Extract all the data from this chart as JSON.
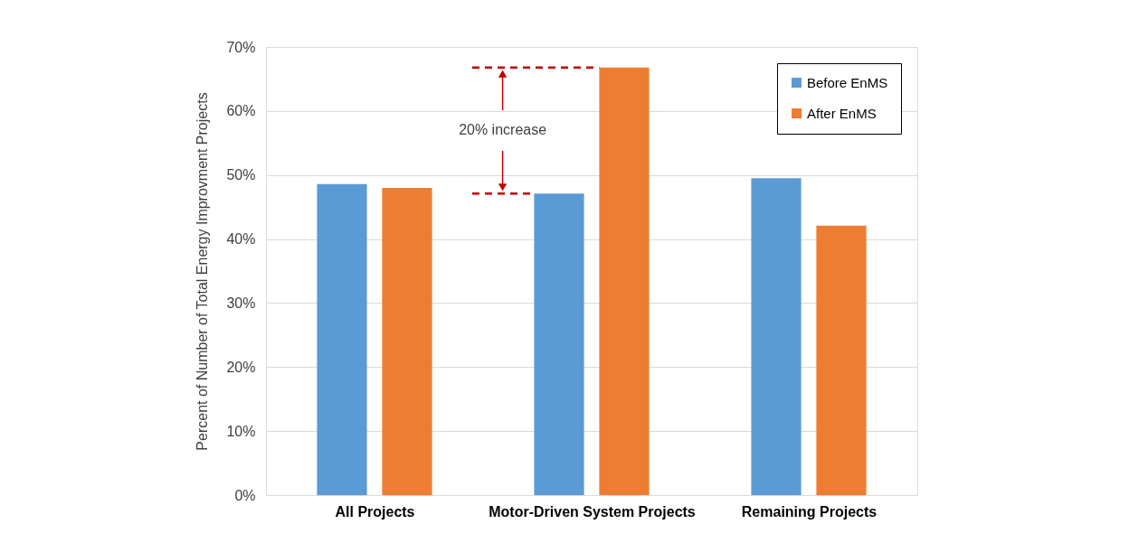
{
  "chart_data": {
    "type": "bar",
    "categories": [
      "All Projects",
      "Motor-Driven System Projects",
      "Remaining Projects"
    ],
    "series": [
      {
        "name": "Before EnMS",
        "color": "#5b9bd5",
        "values": [
          48.6,
          47.1,
          49.5
        ]
      },
      {
        "name": "After EnMS",
        "color": "#ed7d31",
        "values": [
          48.0,
          66.8,
          42.1
        ]
      }
    ],
    "ylabel": "Percent of Number of Total Energy Improvment Projects",
    "ylim": [
      0,
      70
    ],
    "yticks": [
      {
        "value": 0,
        "label": "0%"
      },
      {
        "value": 10,
        "label": "10%"
      },
      {
        "value": 20,
        "label": "20%"
      },
      {
        "value": 30,
        "label": "30%"
      },
      {
        "value": 40,
        "label": "40%"
      },
      {
        "value": 50,
        "label": "50%"
      },
      {
        "value": 60,
        "label": "60%"
      },
      {
        "value": 70,
        "label": "70%"
      }
    ],
    "grid": "y",
    "legend": "top right",
    "ref_lines": [
      {
        "axis": "y",
        "value": 66.8,
        "color": "#c00000",
        "line_style": "dashed"
      },
      {
        "axis": "y",
        "value": 47.1,
        "color": "#c00000",
        "line_style": "dashed"
      }
    ],
    "annotations": [
      {
        "text": "20% increase",
        "y": 66.8
      }
    ]
  }
}
